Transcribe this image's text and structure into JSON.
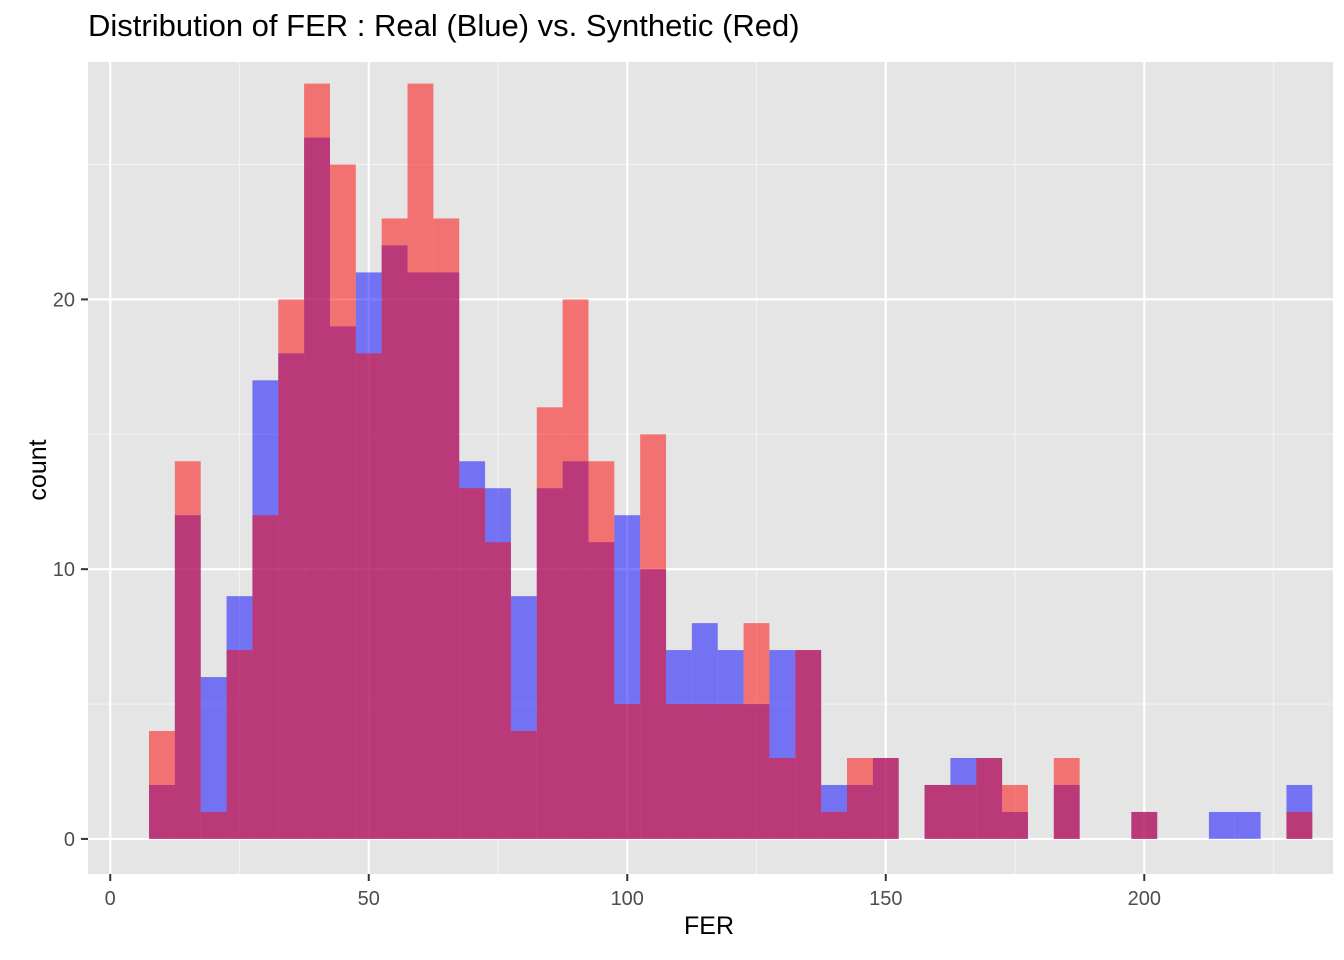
{
  "chart_data": {
    "type": "bar",
    "subtype": "overlaid-histogram",
    "title": "Distribution of FER : Real (Blue) vs. Synthetic (Red)",
    "xlabel": "FER",
    "ylabel": "count",
    "xlim": [
      -4.3,
      236.5
    ],
    "ylim": [
      -1.3,
      28.8
    ],
    "xticks": [
      0,
      50,
      100,
      150,
      200
    ],
    "yticks": [
      0,
      10,
      20
    ],
    "grid": true,
    "bin_width": 5,
    "bin_centers": [
      10,
      15,
      20,
      25,
      30,
      35,
      40,
      45,
      50,
      55,
      60,
      65,
      70,
      75,
      80,
      85,
      90,
      95,
      100,
      105,
      110,
      115,
      120,
      125,
      130,
      135,
      140,
      145,
      150,
      155,
      160,
      165,
      170,
      175,
      180,
      185,
      190,
      195,
      200,
      205,
      210,
      215,
      220,
      225,
      230
    ],
    "series": [
      {
        "name": "Real (Blue)",
        "color": "#0000ff",
        "opacity": 0.5,
        "values": [
          2,
          12,
          6,
          9,
          17,
          18,
          26,
          19,
          21,
          22,
          21,
          21,
          14,
          13,
          9,
          13,
          14,
          11,
          12,
          10,
          7,
          8,
          7,
          5,
          7,
          7,
          2,
          2,
          3,
          0,
          2,
          3,
          3,
          1,
          0,
          2,
          0,
          0,
          1,
          0,
          0,
          1,
          1,
          0,
          2
        ]
      },
      {
        "name": "Synthetic (Red)",
        "color": "#ff0000",
        "opacity": 0.5,
        "values": [
          4,
          14,
          1,
          7,
          12,
          20,
          28,
          25,
          18,
          23,
          28,
          23,
          13,
          11,
          4,
          16,
          20,
          14,
          5,
          15,
          5,
          5,
          5,
          8,
          3,
          7,
          1,
          3,
          3,
          0,
          2,
          2,
          3,
          2,
          0,
          3,
          0,
          0,
          1,
          0,
          0,
          0,
          0,
          0,
          1
        ]
      }
    ]
  }
}
